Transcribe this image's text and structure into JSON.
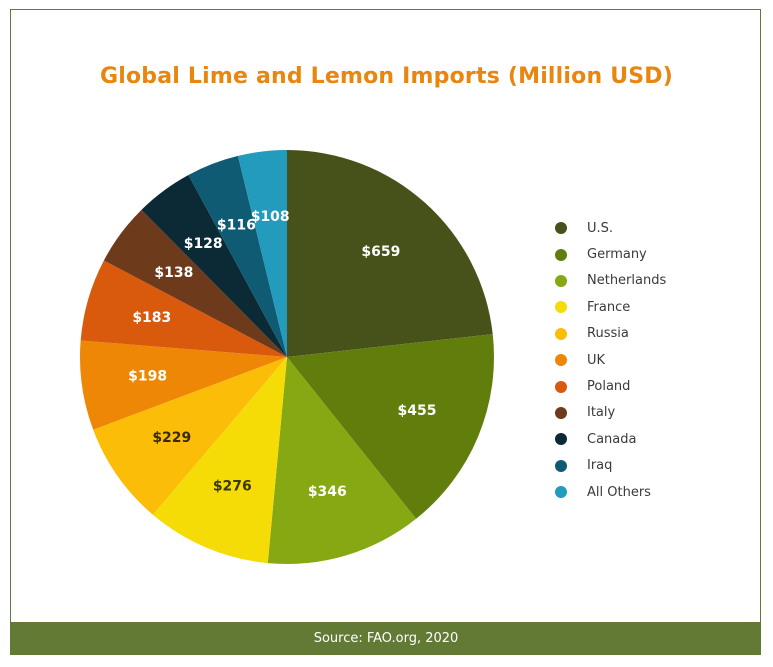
{
  "chart_data": {
    "type": "pie",
    "title": "Global Lime and Lemon Imports (Million USD)",
    "unit_prefix": "$",
    "legend_position": "right",
    "slices": [
      {
        "name": "U.S.",
        "value": 659,
        "label": "$659",
        "color": "#46521a",
        "label_color": "#ffffff"
      },
      {
        "name": "Germany",
        "value": 455,
        "label": "$455",
        "color": "#617d0c",
        "label_color": "#ffffff"
      },
      {
        "name": "Netherlands",
        "value": 346,
        "label": "$346",
        "color": "#86a812",
        "label_color": "#ffffff"
      },
      {
        "name": "France",
        "value": 276,
        "label": "$276",
        "color": "#f6dc07",
        "label_color": "#3a3a00"
      },
      {
        "name": "Russia",
        "value": 229,
        "label": "$229",
        "color": "#fbbd08",
        "label_color": "#3a2a00"
      },
      {
        "name": "UK",
        "value": 198,
        "label": "$198",
        "color": "#ee8706",
        "label_color": "#ffffff"
      },
      {
        "name": "Poland",
        "value": 183,
        "label": "$183",
        "color": "#d95a0d",
        "label_color": "#ffffff"
      },
      {
        "name": "Italy",
        "value": 138,
        "label": "$138",
        "color": "#6e3a1c",
        "label_color": "#ffffff"
      },
      {
        "name": "Canada",
        "value": 128,
        "label": "$128",
        "color": "#0b2a35",
        "label_color": "#ffffff"
      },
      {
        "name": "Iraq",
        "value": 116,
        "label": "$116",
        "color": "#0f5b74",
        "label_color": "#ffffff"
      },
      {
        "name": "All Others",
        "value": 108,
        "label": "$108",
        "color": "#229bbd",
        "label_color": "#ffffff"
      }
    ]
  },
  "footer": {
    "source": "Source: FAO.org, 2020"
  }
}
